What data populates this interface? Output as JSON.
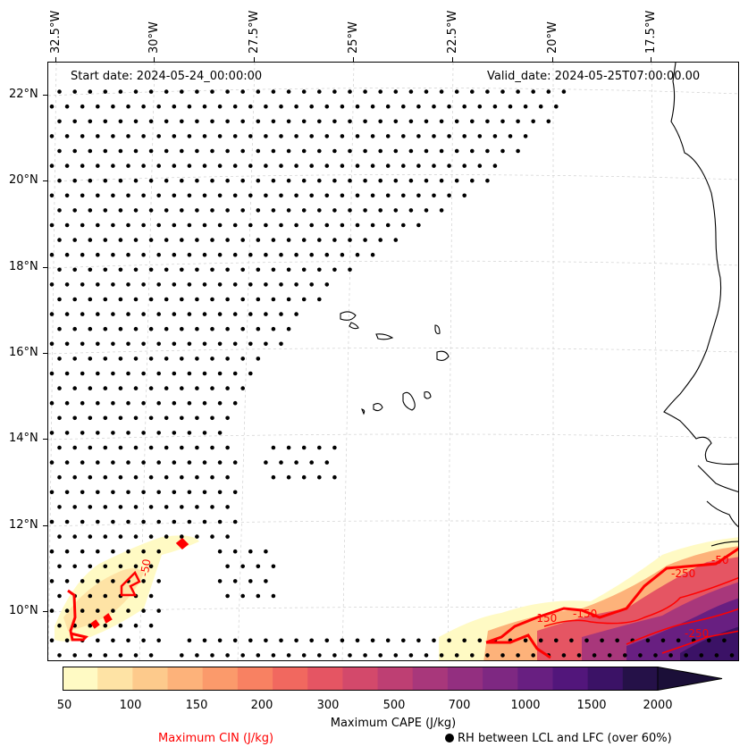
{
  "header": {
    "start_date": "Start date: 2024-05-24_00:00:00",
    "valid_date": "Valid_date: 2024-05-25T07:00:00.00"
  },
  "axes": {
    "lon_labels": [
      "32.5°W",
      "30°W",
      "27.5°W",
      "25°W",
      "22.5°W",
      "20°W",
      "17.5°W"
    ],
    "lat_labels": [
      "22°N",
      "20°N",
      "18°N",
      "16°N",
      "14°N",
      "12°N",
      "10°N"
    ]
  },
  "colorbar": {
    "ticks": [
      "50",
      "100",
      "150",
      "200",
      "300",
      "500",
      "700",
      "1000",
      "1500",
      "2000"
    ],
    "label": "Maximum CAPE (J/kg)",
    "colors": [
      "#fffac4",
      "#fee3a5",
      "#fdca8c",
      "#fdb27a",
      "#fb9a6b",
      "#f88162",
      "#f1685f",
      "#e55563",
      "#d3496b",
      "#be3f73",
      "#a8377b",
      "#932f80",
      "#7e2882",
      "#681f81",
      "#52167b",
      "#3b1266",
      "#251148",
      "#1b0f38"
    ]
  },
  "legend": {
    "cin_label": "Maximum CIN (J/kg)",
    "cin_color": "#ff0000",
    "rh_label": "RH between LCL and LFC (over 60%)"
  },
  "contour_labels": [
    "-50",
    "-50",
    "-150",
    "-250",
    "-250",
    "-150"
  ]
}
